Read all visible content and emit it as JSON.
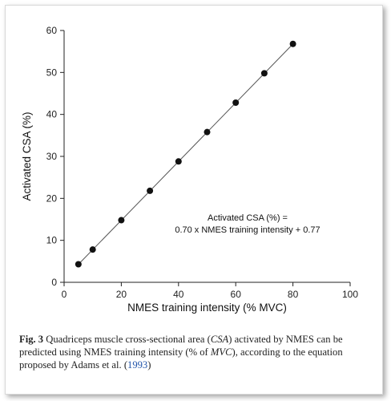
{
  "chart_data": {
    "type": "scatter",
    "xlabel": "NMES training intensity (% MVC)",
    "ylabel": "Activated CSA (%)",
    "xlim": [
      0,
      100
    ],
    "ylim": [
      0,
      60
    ],
    "xticks": [
      0,
      20,
      40,
      60,
      80,
      100
    ],
    "yticks": [
      0,
      10,
      20,
      30,
      40,
      50,
      60
    ],
    "grid": false,
    "x": [
      5,
      10,
      20,
      30,
      40,
      50,
      60,
      70,
      80
    ],
    "y": [
      4.3,
      7.8,
      14.8,
      21.8,
      28.8,
      35.8,
      42.8,
      49.8,
      56.8
    ],
    "fit_line": {
      "slope": 0.7,
      "intercept": 0.77,
      "x_range": [
        5,
        80
      ]
    },
    "annotation": {
      "line1": "Activated CSA (%) =",
      "line2": "0.70 x NMES training intensity + 0.77"
    }
  },
  "caption": {
    "fig_label": "Fig. 3",
    "text_1": " Quadriceps muscle cross-sectional area (",
    "csa_italic": "CSA",
    "text_2": ") activated by NMES can be predicted using NMES training intensity (% of ",
    "mvc_italic": "MVC",
    "text_3": "), according to the equation proposed by Adams et al. (",
    "year": "1993",
    "text_4": ")"
  }
}
